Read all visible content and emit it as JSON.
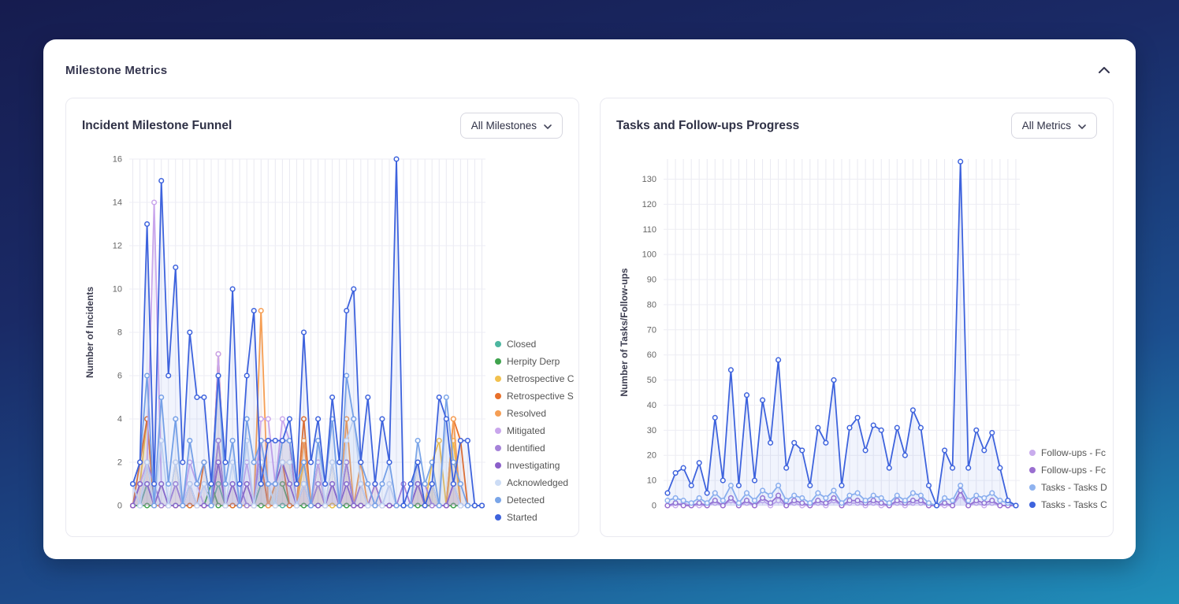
{
  "header": {
    "title": "Milestone Metrics"
  },
  "chart_data": [
    {
      "type": "line",
      "title": "Incident Milestone Funnel",
      "filter_label": "All Milestones",
      "ylabel": "Number of Incidents",
      "ylim": [
        0,
        16
      ],
      "yticks": [
        0,
        2,
        4,
        6,
        8,
        10,
        12,
        14,
        16
      ],
      "legend_position": "right",
      "grid": true,
      "series": [
        {
          "name": "Closed",
          "color": "#4db6a0",
          "values": [
            0,
            0,
            1,
            0,
            0,
            0,
            0,
            0,
            0,
            0,
            0,
            0,
            1,
            0,
            0,
            0,
            0,
            0,
            1,
            1,
            0,
            0,
            0,
            0,
            0,
            0,
            0,
            0,
            0,
            0,
            0,
            0,
            0,
            0,
            0,
            0,
            0,
            0,
            0,
            0,
            0,
            0,
            1,
            0,
            0,
            0,
            0,
            0,
            0,
            0
          ]
        },
        {
          "name": "Herpity Derp",
          "color": "#3fa34d",
          "values": [
            0,
            0,
            0,
            0,
            0,
            0,
            0,
            0,
            0,
            0,
            0,
            1,
            0,
            0,
            0,
            0,
            0,
            0,
            0,
            0,
            1,
            1,
            0,
            0,
            0,
            0,
            0,
            0,
            0,
            0,
            0,
            0,
            0,
            0,
            0,
            0,
            0,
            0,
            0,
            0,
            0,
            0,
            0,
            0,
            0,
            0,
            0,
            0,
            0,
            0
          ]
        },
        {
          "name": "Retrospective C",
          "color": "#f2c14e",
          "values": [
            0,
            1,
            4,
            0,
            1,
            0,
            0,
            0,
            1,
            0,
            0,
            0,
            3,
            0,
            1,
            0,
            0,
            0,
            2,
            0,
            1,
            3,
            3,
            0,
            2,
            0,
            1,
            0,
            0,
            0,
            2,
            0,
            1,
            0,
            0,
            0,
            0,
            0,
            0,
            0,
            1,
            0,
            2,
            3,
            0,
            3,
            0,
            0,
            0,
            0
          ]
        },
        {
          "name": "Retrospective S",
          "color": "#e8702a",
          "values": [
            0,
            2,
            4,
            0,
            0,
            0,
            1,
            0,
            0,
            0,
            2,
            0,
            7,
            0,
            0,
            0,
            1,
            0,
            2,
            0,
            0,
            2,
            0,
            0,
            4,
            0,
            2,
            0,
            1,
            0,
            2,
            0,
            0,
            0,
            1,
            0,
            0,
            0,
            0,
            0,
            2,
            0,
            1,
            0,
            0,
            4,
            3,
            0,
            0,
            0
          ]
        },
        {
          "name": "Resolved",
          "color": "#f59e54",
          "values": [
            0,
            1,
            2,
            0,
            0,
            0,
            2,
            0,
            1,
            0,
            0,
            0,
            2,
            0,
            1,
            0,
            0,
            0,
            9,
            0,
            1,
            2,
            2,
            0,
            3,
            0,
            1,
            0,
            2,
            0,
            4,
            0,
            2,
            0,
            0,
            0,
            0,
            0,
            0,
            0,
            1,
            0,
            1,
            0,
            0,
            4,
            0,
            0,
            0,
            0
          ]
        },
        {
          "name": "Mitigated",
          "color": "#c9a6ec",
          "values": [
            0,
            1,
            2,
            14,
            1,
            0,
            1,
            0,
            2,
            1,
            0,
            0,
            7,
            0,
            1,
            0,
            2,
            0,
            4,
            4,
            1,
            4,
            3,
            0,
            1,
            0,
            2,
            0,
            1,
            0,
            2,
            0,
            1,
            0,
            0,
            0,
            1,
            0,
            0,
            0,
            1,
            1,
            0,
            0,
            0,
            1,
            0,
            0,
            0,
            0
          ]
        },
        {
          "name": "Identified",
          "color": "#a583d9",
          "values": [
            1,
            0,
            2,
            1,
            0,
            0,
            1,
            0,
            1,
            0,
            1,
            0,
            3,
            0,
            1,
            1,
            0,
            0,
            3,
            3,
            3,
            3,
            3,
            0,
            1,
            0,
            1,
            0,
            1,
            0,
            2,
            0,
            1,
            0,
            1,
            0,
            0,
            0,
            1,
            0,
            1,
            1,
            0,
            0,
            0,
            1,
            0,
            0,
            0,
            0
          ]
        },
        {
          "name": "Investigating",
          "color": "#8b5fc9",
          "values": [
            0,
            1,
            1,
            0,
            1,
            0,
            0,
            0,
            1,
            0,
            0,
            0,
            2,
            0,
            1,
            0,
            1,
            0,
            2,
            1,
            1,
            2,
            1,
            0,
            1,
            0,
            0,
            0,
            1,
            0,
            1,
            0,
            0,
            0,
            0,
            0,
            0,
            0,
            0,
            0,
            1,
            0,
            1,
            0,
            0,
            1,
            0,
            0,
            0,
            0
          ]
        },
        {
          "name": "Acknowledged",
          "color": "#ccdcf5",
          "values": [
            1,
            0,
            2,
            0,
            3,
            0,
            2,
            0,
            1,
            0,
            1,
            0,
            6,
            0,
            2,
            0,
            3,
            0,
            2,
            1,
            0,
            2,
            2,
            0,
            1,
            0,
            3,
            0,
            2,
            0,
            3,
            4,
            1,
            0,
            0,
            0,
            1,
            0,
            0,
            0,
            2,
            0,
            1,
            0,
            4,
            1,
            0,
            0,
            0,
            0
          ]
        },
        {
          "name": "Detected",
          "color": "#7aa5e8",
          "values": [
            1,
            2,
            6,
            0,
            5,
            1,
            4,
            0,
            3,
            1,
            2,
            0,
            6,
            1,
            3,
            0,
            4,
            2,
            3,
            1,
            1,
            3,
            3,
            1,
            2,
            0,
            3,
            1,
            4,
            0,
            6,
            4,
            2,
            1,
            0,
            1,
            2,
            0,
            0,
            0,
            3,
            1,
            2,
            0,
            5,
            2,
            1,
            0,
            0,
            0
          ]
        },
        {
          "name": "Started",
          "color": "#3e63dd",
          "values": [
            1,
            2,
            13,
            1,
            15,
            6,
            11,
            2,
            8,
            5,
            5,
            1,
            6,
            2,
            10,
            1,
            6,
            9,
            1,
            3,
            3,
            3,
            4,
            1,
            8,
            2,
            4,
            1,
            5,
            2,
            9,
            10,
            2,
            5,
            1,
            4,
            2,
            16,
            0,
            1,
            2,
            0,
            1,
            5,
            4,
            1,
            3,
            3,
            0,
            0
          ]
        }
      ]
    },
    {
      "type": "line",
      "title": "Tasks and Follow-ups Progress",
      "filter_label": "All Metrics",
      "ylabel": "Number of Tasks/Follow-ups",
      "ylim": [
        0,
        138
      ],
      "yticks": [
        0,
        10,
        20,
        30,
        40,
        50,
        60,
        70,
        80,
        90,
        100,
        110,
        120,
        130
      ],
      "legend_position": "right",
      "grid": true,
      "series": [
        {
          "name": "Follow-ups - Fc",
          "color": "#c9aced",
          "values": [
            0,
            0,
            1,
            0,
            0,
            0,
            1,
            0,
            2,
            0,
            1,
            0,
            2,
            0,
            2,
            0,
            1,
            0,
            0,
            1,
            0,
            2,
            0,
            1,
            1,
            0,
            1,
            0,
            0,
            1,
            0,
            1,
            1,
            0,
            0,
            0,
            0,
            4,
            0,
            1,
            0,
            1,
            0,
            0,
            0
          ]
        },
        {
          "name": "Follow-ups - Fc",
          "color": "#9a6fd0",
          "values": [
            0,
            1,
            0,
            0,
            1,
            0,
            2,
            0,
            3,
            0,
            2,
            0,
            3,
            1,
            4,
            0,
            2,
            1,
            0,
            2,
            1,
            3,
            0,
            2,
            2,
            1,
            2,
            1,
            0,
            2,
            1,
            2,
            2,
            0,
            0,
            1,
            0,
            6,
            0,
            2,
            1,
            2,
            0,
            0,
            0
          ]
        },
        {
          "name": "Tasks - Tasks D",
          "color": "#8fb3ef",
          "values": [
            2,
            3,
            2,
            1,
            3,
            1,
            5,
            2,
            8,
            1,
            5,
            2,
            6,
            4,
            8,
            2,
            4,
            3,
            1,
            5,
            3,
            6,
            1,
            4,
            5,
            2,
            4,
            3,
            1,
            4,
            2,
            5,
            4,
            1,
            0,
            3,
            2,
            8,
            2,
            4,
            3,
            5,
            2,
            1,
            0
          ]
        },
        {
          "name": "Tasks - Tasks C",
          "color": "#3e63dd",
          "values": [
            5,
            13,
            15,
            8,
            17,
            5,
            35,
            10,
            54,
            8,
            44,
            10,
            42,
            25,
            58,
            15,
            25,
            22,
            8,
            31,
            25,
            50,
            8,
            31,
            35,
            22,
            32,
            30,
            15,
            31,
            20,
            38,
            31,
            8,
            0,
            22,
            15,
            137,
            15,
            30,
            22,
            29,
            15,
            2,
            0
          ]
        }
      ]
    }
  ]
}
